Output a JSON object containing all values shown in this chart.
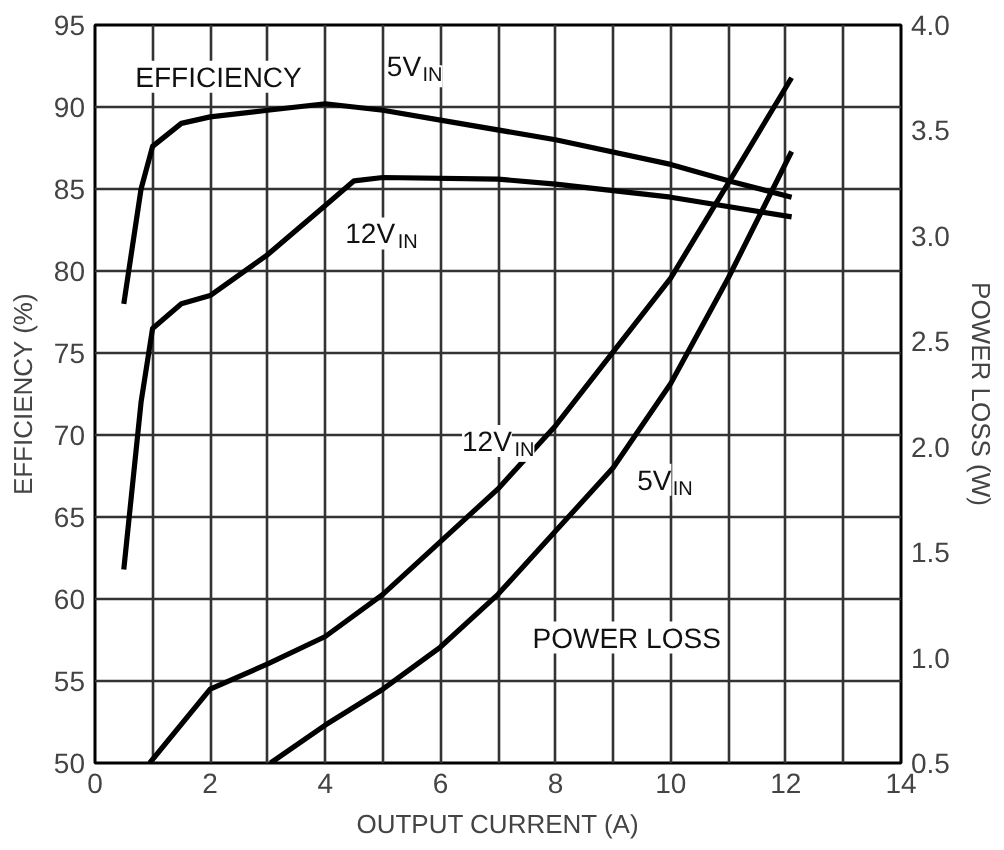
{
  "chart_data": {
    "type": "line",
    "xlabel": "OUTPUT CURRENT (A)",
    "ylabel": "EFFICIENCY (%)",
    "y2label": "POWER LOSS (W)",
    "xlim": [
      0,
      14
    ],
    "xticks": [
      0,
      {
        "value": 1,
        "label": null
      },
      2,
      {
        "value": 3,
        "label": null
      },
      4,
      {
        "value": 5,
        "label": null
      },
      6,
      {
        "value": 7,
        "label": null
      },
      8,
      {
        "value": 9,
        "label": null
      },
      10,
      {
        "value": 11,
        "label": null
      },
      12,
      {
        "value": 13,
        "label": null
      },
      14
    ],
    "ylim": [
      50,
      95
    ],
    "yticks": [
      50,
      55,
      60,
      65,
      70,
      75,
      80,
      85,
      90,
      95
    ],
    "y2lim": [
      0.5,
      4.0
    ],
    "y2ticks": [
      0.5,
      {
        "value": 1,
        "label": "1.0"
      },
      1.5,
      {
        "value": 2,
        "label": "2.0"
      },
      2.5,
      {
        "value": 3,
        "label": "3.0"
      },
      3.5,
      {
        "value": 4,
        "label": "4.0"
      }
    ],
    "grid": true,
    "line_style": "solid",
    "marker": "none",
    "series": [
      {
        "name": "5V$_{IN}$",
        "color": "#000000",
        "x": [
          0.5,
          0.8,
          1,
          1.5,
          2,
          3,
          4,
          5,
          6,
          8,
          10,
          11,
          12.1
        ],
        "values": [
          78,
          85,
          87.6,
          89,
          89.4,
          89.8,
          90.2,
          89.8,
          89.2,
          88,
          86.5,
          85.5,
          84.5
        ]
      },
      {
        "name": "12V$_{IN}$",
        "color": "#000000",
        "x": [
          0.5,
          0.8,
          1,
          1.5,
          2,
          3,
          4,
          4.5,
          5,
          7,
          8,
          10,
          12.1
        ],
        "values": [
          61.8,
          72,
          76.5,
          78,
          78.5,
          81,
          84,
          85.5,
          85.7,
          85.6,
          85.3,
          84.5,
          83.3
        ]
      },
      {
        "name": "12V$_{IN}$",
        "color": "#000000",
        "axis": "y2",
        "x": [
          0.95,
          2,
          3,
          4,
          5,
          6,
          7,
          8,
          9,
          10,
          11,
          12.1
        ],
        "values": [
          0.5,
          0.85,
          0.97,
          1.1,
          1.3,
          1.55,
          1.8,
          2.1,
          2.45,
          2.8,
          3.25,
          3.75
        ]
      },
      {
        "name": "5V$_{IN}$",
        "color": "#000000",
        "axis": "y2",
        "x": [
          3.05,
          4,
          5,
          6,
          7,
          8,
          9,
          10,
          11,
          12.1
        ],
        "values": [
          0.5,
          0.68,
          0.85,
          1.05,
          1.3,
          1.6,
          1.9,
          2.3,
          2.8,
          3.4
        ]
      }
    ],
    "annotations": [
      "EFFICIENCY",
      "POWER LOSS"
    ]
  }
}
